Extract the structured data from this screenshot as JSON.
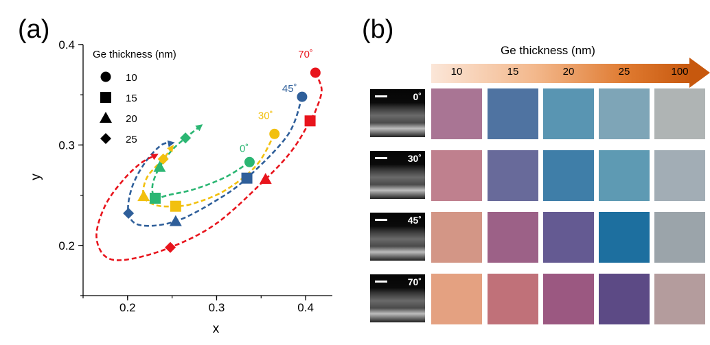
{
  "chart_data": {
    "type": "scatter",
    "panel_label": "(a)",
    "xlabel": "x",
    "ylabel": "y",
    "xlim": [
      0.15,
      0.43
    ],
    "ylim": [
      0.15,
      0.4
    ],
    "xticks": [
      0.2,
      0.3,
      0.4
    ],
    "yticks": [
      0.2,
      0.3,
      0.4
    ],
    "tick_labels_x": [
      "0.2",
      "0.3",
      "0.4"
    ],
    "tick_labels_y": [
      "0.2",
      "0.3",
      "0.4"
    ],
    "legend": {
      "title": "Ge thickness (nm)",
      "placement": "top-left",
      "entries": [
        {
          "marker": "circle",
          "label": "10"
        },
        {
          "marker": "square",
          "label": "15"
        },
        {
          "marker": "triangle",
          "label": "20"
        },
        {
          "marker": "diamond",
          "label": "25"
        }
      ]
    },
    "series": [
      {
        "name": "0˚",
        "color": "#2bb673",
        "points": [
          {
            "thickness": "10",
            "marker": "circle",
            "x": 0.337,
            "y": 0.283
          },
          {
            "thickness": "15",
            "marker": "square",
            "x": 0.231,
            "y": 0.247
          },
          {
            "thickness": "20",
            "marker": "triangle",
            "x": 0.236,
            "y": 0.278
          },
          {
            "thickness": "25",
            "marker": "diamond",
            "x": 0.265,
            "y": 0.307
          }
        ],
        "curve": [
          [
            0.337,
            0.283
          ],
          [
            0.31,
            0.268
          ],
          [
            0.275,
            0.256
          ],
          [
            0.245,
            0.25
          ],
          [
            0.231,
            0.247
          ],
          [
            0.228,
            0.26
          ],
          [
            0.236,
            0.278
          ],
          [
            0.25,
            0.295
          ],
          [
            0.265,
            0.307
          ],
          [
            0.282,
            0.319
          ]
        ]
      },
      {
        "name": "30˚",
        "color": "#f2c00e",
        "points": [
          {
            "thickness": "10",
            "marker": "circle",
            "x": 0.365,
            "y": 0.311
          },
          {
            "thickness": "15",
            "marker": "square",
            "x": 0.254,
            "y": 0.239
          },
          {
            "thickness": "20",
            "marker": "triangle",
            "x": 0.218,
            "y": 0.249
          },
          {
            "thickness": "25",
            "marker": "diamond",
            "x": 0.24,
            "y": 0.286
          }
        ],
        "curve": [
          [
            0.365,
            0.311
          ],
          [
            0.345,
            0.28
          ],
          [
            0.31,
            0.255
          ],
          [
            0.275,
            0.242
          ],
          [
            0.254,
            0.239
          ],
          [
            0.232,
            0.24
          ],
          [
            0.218,
            0.249
          ],
          [
            0.222,
            0.268
          ],
          [
            0.24,
            0.286
          ],
          [
            0.25,
            0.298
          ]
        ]
      },
      {
        "name": "45˚",
        "color": "#2f5f9a",
        "points": [
          {
            "thickness": "10",
            "marker": "circle",
            "x": 0.396,
            "y": 0.348
          },
          {
            "thickness": "15",
            "marker": "square",
            "x": 0.334,
            "y": 0.267
          },
          {
            "thickness": "20",
            "marker": "triangle",
            "x": 0.254,
            "y": 0.224
          },
          {
            "thickness": "25",
            "marker": "diamond",
            "x": 0.201,
            "y": 0.232
          }
        ],
        "curve": [
          [
            0.396,
            0.348
          ],
          [
            0.38,
            0.31
          ],
          [
            0.334,
            0.267
          ],
          [
            0.3,
            0.245
          ],
          [
            0.254,
            0.224
          ],
          [
            0.215,
            0.22
          ],
          [
            0.201,
            0.232
          ],
          [
            0.205,
            0.258
          ],
          [
            0.22,
            0.283
          ],
          [
            0.238,
            0.3
          ],
          [
            0.25,
            0.302
          ]
        ]
      },
      {
        "name": "70˚",
        "color": "#e8141c",
        "points": [
          {
            "thickness": "10",
            "marker": "circle",
            "x": 0.411,
            "y": 0.372
          },
          {
            "thickness": "15",
            "marker": "square",
            "x": 0.405,
            "y": 0.324
          },
          {
            "thickness": "20",
            "marker": "triangle",
            "x": 0.355,
            "y": 0.266
          },
          {
            "thickness": "25",
            "marker": "diamond",
            "x": 0.248,
            "y": 0.198
          }
        ],
        "curve": [
          [
            0.411,
            0.372
          ],
          [
            0.418,
            0.355
          ],
          [
            0.412,
            0.336
          ],
          [
            0.405,
            0.324
          ],
          [
            0.385,
            0.295
          ],
          [
            0.355,
            0.266
          ],
          [
            0.3,
            0.222
          ],
          [
            0.248,
            0.198
          ],
          [
            0.2,
            0.186
          ],
          [
            0.175,
            0.189
          ],
          [
            0.165,
            0.21
          ],
          [
            0.175,
            0.24
          ],
          [
            0.195,
            0.265
          ],
          [
            0.215,
            0.282
          ],
          [
            0.232,
            0.29
          ]
        ]
      }
    ],
    "annotations": [
      {
        "text": "0˚",
        "x": 0.331,
        "y": 0.293,
        "color": "#2bb673"
      },
      {
        "text": "30˚",
        "x": 0.355,
        "y": 0.326,
        "color": "#f2c00e"
      },
      {
        "text": "45˚",
        "x": 0.382,
        "y": 0.353,
        "color": "#2f5f9a"
      },
      {
        "text": "70˚",
        "x": 0.4,
        "y": 0.387,
        "color": "#e8141c"
      }
    ]
  },
  "panel_b": {
    "label": "(b)",
    "axis_title": "Ge thickness (nm)",
    "thickness_labels": [
      "10",
      "15",
      "20",
      "25",
      "100"
    ],
    "rows": [
      {
        "angle": "0˚",
        "colors": [
          "#a97594",
          "#4f73a1",
          "#5995b2",
          "#7ea5b7",
          "#afb4b4"
        ]
      },
      {
        "angle": "30˚",
        "colors": [
          "#bf808e",
          "#686a9a",
          "#3f7ea8",
          "#5e9ab3",
          "#a2adb5"
        ]
      },
      {
        "angle": "45˚",
        "colors": [
          "#d39686",
          "#9c6187",
          "#645a92",
          "#1d6f9f",
          "#9ba4aa"
        ]
      },
      {
        "angle": "70˚",
        "colors": [
          "#e4a181",
          "#c07179",
          "#9b5881",
          "#5c4a85",
          "#b49c9d"
        ]
      }
    ]
  }
}
